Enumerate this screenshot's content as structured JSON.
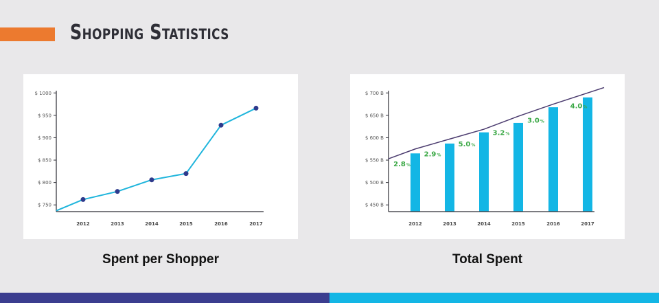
{
  "header": {
    "title": "Shopping Statistics"
  },
  "colors": {
    "accent_orange": "#ec7a2f",
    "line_cyan": "#1fb5dc",
    "point_navy": "#2e3a8c",
    "bar_cyan": "#13b6e5",
    "trend_purple": "#4a3a6e",
    "pct_green": "#3aa845",
    "footer_navy": "#3b3d8f",
    "footer_cyan": "#13b6e5"
  },
  "chart_data": [
    {
      "type": "line",
      "title": "Spent per Shopper",
      "x": [
        "2012",
        "2013",
        "2014",
        "2015",
        "2016",
        "2017"
      ],
      "x_tick_labels": [
        "2012",
        "2013",
        "2014",
        "2015",
        "2016",
        "2017"
      ],
      "series": [
        {
          "values": [
            762,
            780,
            806,
            820,
            928,
            966
          ]
        }
      ],
      "line_start_value": 737,
      "y_tick_labels": [
        "$ 750",
        "$ 800",
        "$ 850",
        "$ 900",
        "$ 950",
        "$ 1000"
      ],
      "ylim": [
        735,
        1005
      ],
      "grid": false
    },
    {
      "type": "bar",
      "title": "Total Spent",
      "categories": [
        "2012",
        "2013",
        "2014",
        "2015",
        "2016",
        "2017"
      ],
      "x_tick_labels": [
        "2012",
        "2013",
        "2014",
        "2015",
        "2016",
        "2017"
      ],
      "series": [
        {
          "values": [
            565,
            587,
            612,
            633,
            668,
            690
          ]
        }
      ],
      "trend_line": [
        553,
        575,
        597,
        619,
        648,
        675,
        712
      ],
      "growth_labels": [
        {
          "value": "2.8",
          "unit": "%"
        },
        {
          "value": "2.9",
          "unit": "%"
        },
        {
          "value": "5.0",
          "unit": "%"
        },
        {
          "value": "3.2",
          "unit": "%"
        },
        {
          "value": "3.0",
          "unit": "%"
        },
        {
          "value": "4.0",
          "unit": "%"
        }
      ],
      "y_tick_labels": [
        "$ 450 B",
        "$ 500 B",
        "$ 550 B",
        "$ 600 B",
        "$ 650 B",
        "$ 700 B"
      ],
      "ylim": [
        435,
        705
      ],
      "grid": false
    }
  ]
}
